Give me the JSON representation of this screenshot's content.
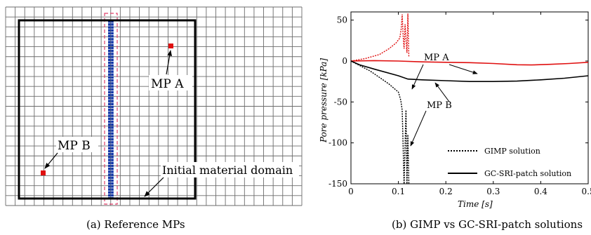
{
  "chart_data": [
    {
      "type": "diagram",
      "caption": "(a) Reference MPs",
      "labels": {
        "mp_a": "MP A",
        "mp_b": "MP B",
        "domain": "Initial material domain"
      },
      "grid": {
        "columns": 31,
        "rows": 20
      },
      "colors": {
        "grid": "#6b6b6b",
        "domain": "#000000",
        "reference_mp": "#e01010",
        "column_particles": "#1236a8",
        "selection": "#e0406a"
      }
    },
    {
      "type": "line",
      "caption": "(b) GIMP vs GC-SRI-patch solutions",
      "xlabel": "Time [s]",
      "ylabel": "Pore pressure [kPa]",
      "xlim": [
        0,
        0.5
      ],
      "ylim": [
        -150,
        60
      ],
      "xticks": [
        "0",
        "0.1",
        "0.2",
        "0.3",
        "0.4",
        "0.5"
      ],
      "yticks": [
        "50",
        "0",
        "-50",
        "-100",
        "-150"
      ],
      "annotations": {
        "mp_a": "MP A",
        "mp_b": "MP B"
      },
      "legend": {
        "position": "bottom-right",
        "entries": [
          {
            "label": "GIMP solution",
            "style": "dotted"
          },
          {
            "label": "GC-SRI-patch solution",
            "style": "solid"
          }
        ]
      },
      "series": [
        {
          "name": "GIMP solution",
          "point": "MP A",
          "color": "#e01010",
          "style": "dotted",
          "x": [
            0,
            0.03,
            0.06,
            0.08,
            0.095,
            0.103,
            0.106,
            0.108,
            0.11,
            0.112,
            0.114,
            0.116,
            0.118,
            0.12,
            0.122
          ],
          "y": [
            0,
            3,
            8,
            15,
            22,
            28,
            40,
            57,
            30,
            15,
            45,
            25,
            10,
            58,
            5
          ]
        },
        {
          "name": "GC-SRI-patch solution",
          "point": "MP A",
          "color": "#e01010",
          "style": "solid",
          "x": [
            0,
            0.05,
            0.1,
            0.15,
            0.2,
            0.25,
            0.3,
            0.35,
            0.38,
            0.42,
            0.46,
            0.5
          ],
          "y": [
            0,
            0.5,
            0,
            -1,
            -1.5,
            -2,
            -3,
            -4.5,
            -4.8,
            -4,
            -3,
            -1.5
          ]
        },
        {
          "name": "GIMP solution",
          "point": "MP B",
          "color": "#000000",
          "style": "dotted",
          "x": [
            0,
            0.02,
            0.04,
            0.06,
            0.08,
            0.1,
            0.105,
            0.108,
            0.112,
            0.116,
            0.118,
            0.12,
            0.122
          ],
          "y": [
            0,
            -6,
            -12,
            -20,
            -28,
            -38,
            -48,
            -60,
            -150,
            -60,
            -150,
            -90,
            -150
          ]
        },
        {
          "name": "GC-SRI-patch solution",
          "point": "MP B",
          "color": "#000000",
          "style": "solid",
          "x": [
            0,
            0.02,
            0.05,
            0.1,
            0.12,
            0.15,
            0.2,
            0.25,
            0.3,
            0.35,
            0.4,
            0.45,
            0.5
          ],
          "y": [
            0,
            -5,
            -10,
            -18,
            -22,
            -23,
            -24,
            -25,
            -25,
            -24.5,
            -23,
            -21,
            -18
          ]
        }
      ]
    }
  ]
}
